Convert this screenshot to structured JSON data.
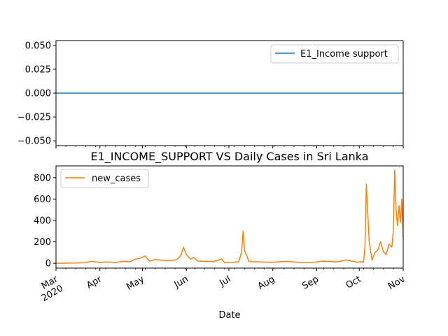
{
  "chart_data": [
    {
      "type": "line",
      "title": "",
      "xlabel": "",
      "ylabel": "",
      "ylim": [
        -0.055,
        0.055
      ],
      "yticks": [
        "0.050",
        "0.025",
        "0.000",
        "−0.025",
        "−0.050"
      ],
      "ytick_values": [
        0.05,
        0.025,
        0.0,
        -0.025,
        -0.05
      ],
      "legend": {
        "position": "top-right",
        "entries": [
          "E1_Income support"
        ]
      },
      "series": [
        {
          "name": "E1_Income support",
          "color": "#1f77b4",
          "x": [
            "2020-03-01",
            "2020-11-01"
          ],
          "values": [
            0,
            0
          ]
        }
      ]
    },
    {
      "type": "line",
      "title": "E1_INCOME_SUPPORT VS Daily Cases in Sri Lanka",
      "xlabel": "Date",
      "ylabel": "",
      "ylim": [
        -45,
        910
      ],
      "yticks": [
        "800",
        "600",
        "400",
        "200",
        "0"
      ],
      "ytick_values": [
        800,
        600,
        400,
        200,
        0
      ],
      "xticks": [
        {
          "date": "2020-03-01",
          "label": "Mar",
          "sub": "2020"
        },
        {
          "date": "2020-04-01",
          "label": "Apr",
          "sub": ""
        },
        {
          "date": "2020-05-01",
          "label": "May",
          "sub": ""
        },
        {
          "date": "2020-06-01",
          "label": "Jun",
          "sub": ""
        },
        {
          "date": "2020-07-01",
          "label": "Jul",
          "sub": ""
        },
        {
          "date": "2020-08-01",
          "label": "Aug",
          "sub": ""
        },
        {
          "date": "2020-09-01",
          "label": "Sep",
          "sub": ""
        },
        {
          "date": "2020-10-01",
          "label": "Oct",
          "sub": ""
        },
        {
          "date": "2020-11-01",
          "label": "Nov",
          "sub": ""
        }
      ],
      "legend": {
        "position": "top-left",
        "entries": [
          "new_cases"
        ]
      },
      "series": [
        {
          "name": "new_cases",
          "color": "#ff7f0e",
          "x": [
            "2020-03-01",
            "2020-03-15",
            "2020-03-22",
            "2020-03-26",
            "2020-04-01",
            "2020-04-06",
            "2020-04-12",
            "2020-04-18",
            "2020-04-22",
            "2020-04-26",
            "2020-04-29",
            "2020-05-03",
            "2020-05-06",
            "2020-05-10",
            "2020-05-15",
            "2020-05-20",
            "2020-05-25",
            "2020-05-28",
            "2020-05-30",
            "2020-06-01",
            "2020-06-04",
            "2020-06-06",
            "2020-06-09",
            "2020-06-13",
            "2020-06-20",
            "2020-06-26",
            "2020-06-28",
            "2020-07-04",
            "2020-07-08",
            "2020-07-10",
            "2020-07-11",
            "2020-07-12",
            "2020-07-14",
            "2020-07-15",
            "2020-07-18",
            "2020-07-24",
            "2020-08-01",
            "2020-08-10",
            "2020-08-20",
            "2020-08-30",
            "2020-09-05",
            "2020-09-15",
            "2020-09-22",
            "2020-09-30",
            "2020-10-02",
            "2020-10-04",
            "2020-10-05",
            "2020-10-06",
            "2020-10-08",
            "2020-10-10",
            "2020-10-12",
            "2020-10-14",
            "2020-10-16",
            "2020-10-18",
            "2020-10-20",
            "2020-10-22",
            "2020-10-24",
            "2020-10-25",
            "2020-10-26",
            "2020-10-27",
            "2020-10-28",
            "2020-10-29",
            "2020-10-30",
            "2020-10-31",
            "2020-11-01"
          ],
          "values": [
            0,
            2,
            6,
            18,
            8,
            12,
            8,
            18,
            14,
            38,
            45,
            68,
            20,
            35,
            28,
            25,
            32,
            70,
            150,
            80,
            40,
            55,
            20,
            18,
            15,
            40,
            5,
            10,
            15,
            110,
            300,
            120,
            60,
            20,
            15,
            12,
            10,
            18,
            8,
            10,
            20,
            12,
            30,
            10,
            15,
            10,
            150,
            740,
            200,
            30,
            100,
            120,
            200,
            110,
            80,
            180,
            150,
            300,
            870,
            500,
            350,
            540,
            380,
            600,
            240
          ]
        }
      ]
    }
  ]
}
